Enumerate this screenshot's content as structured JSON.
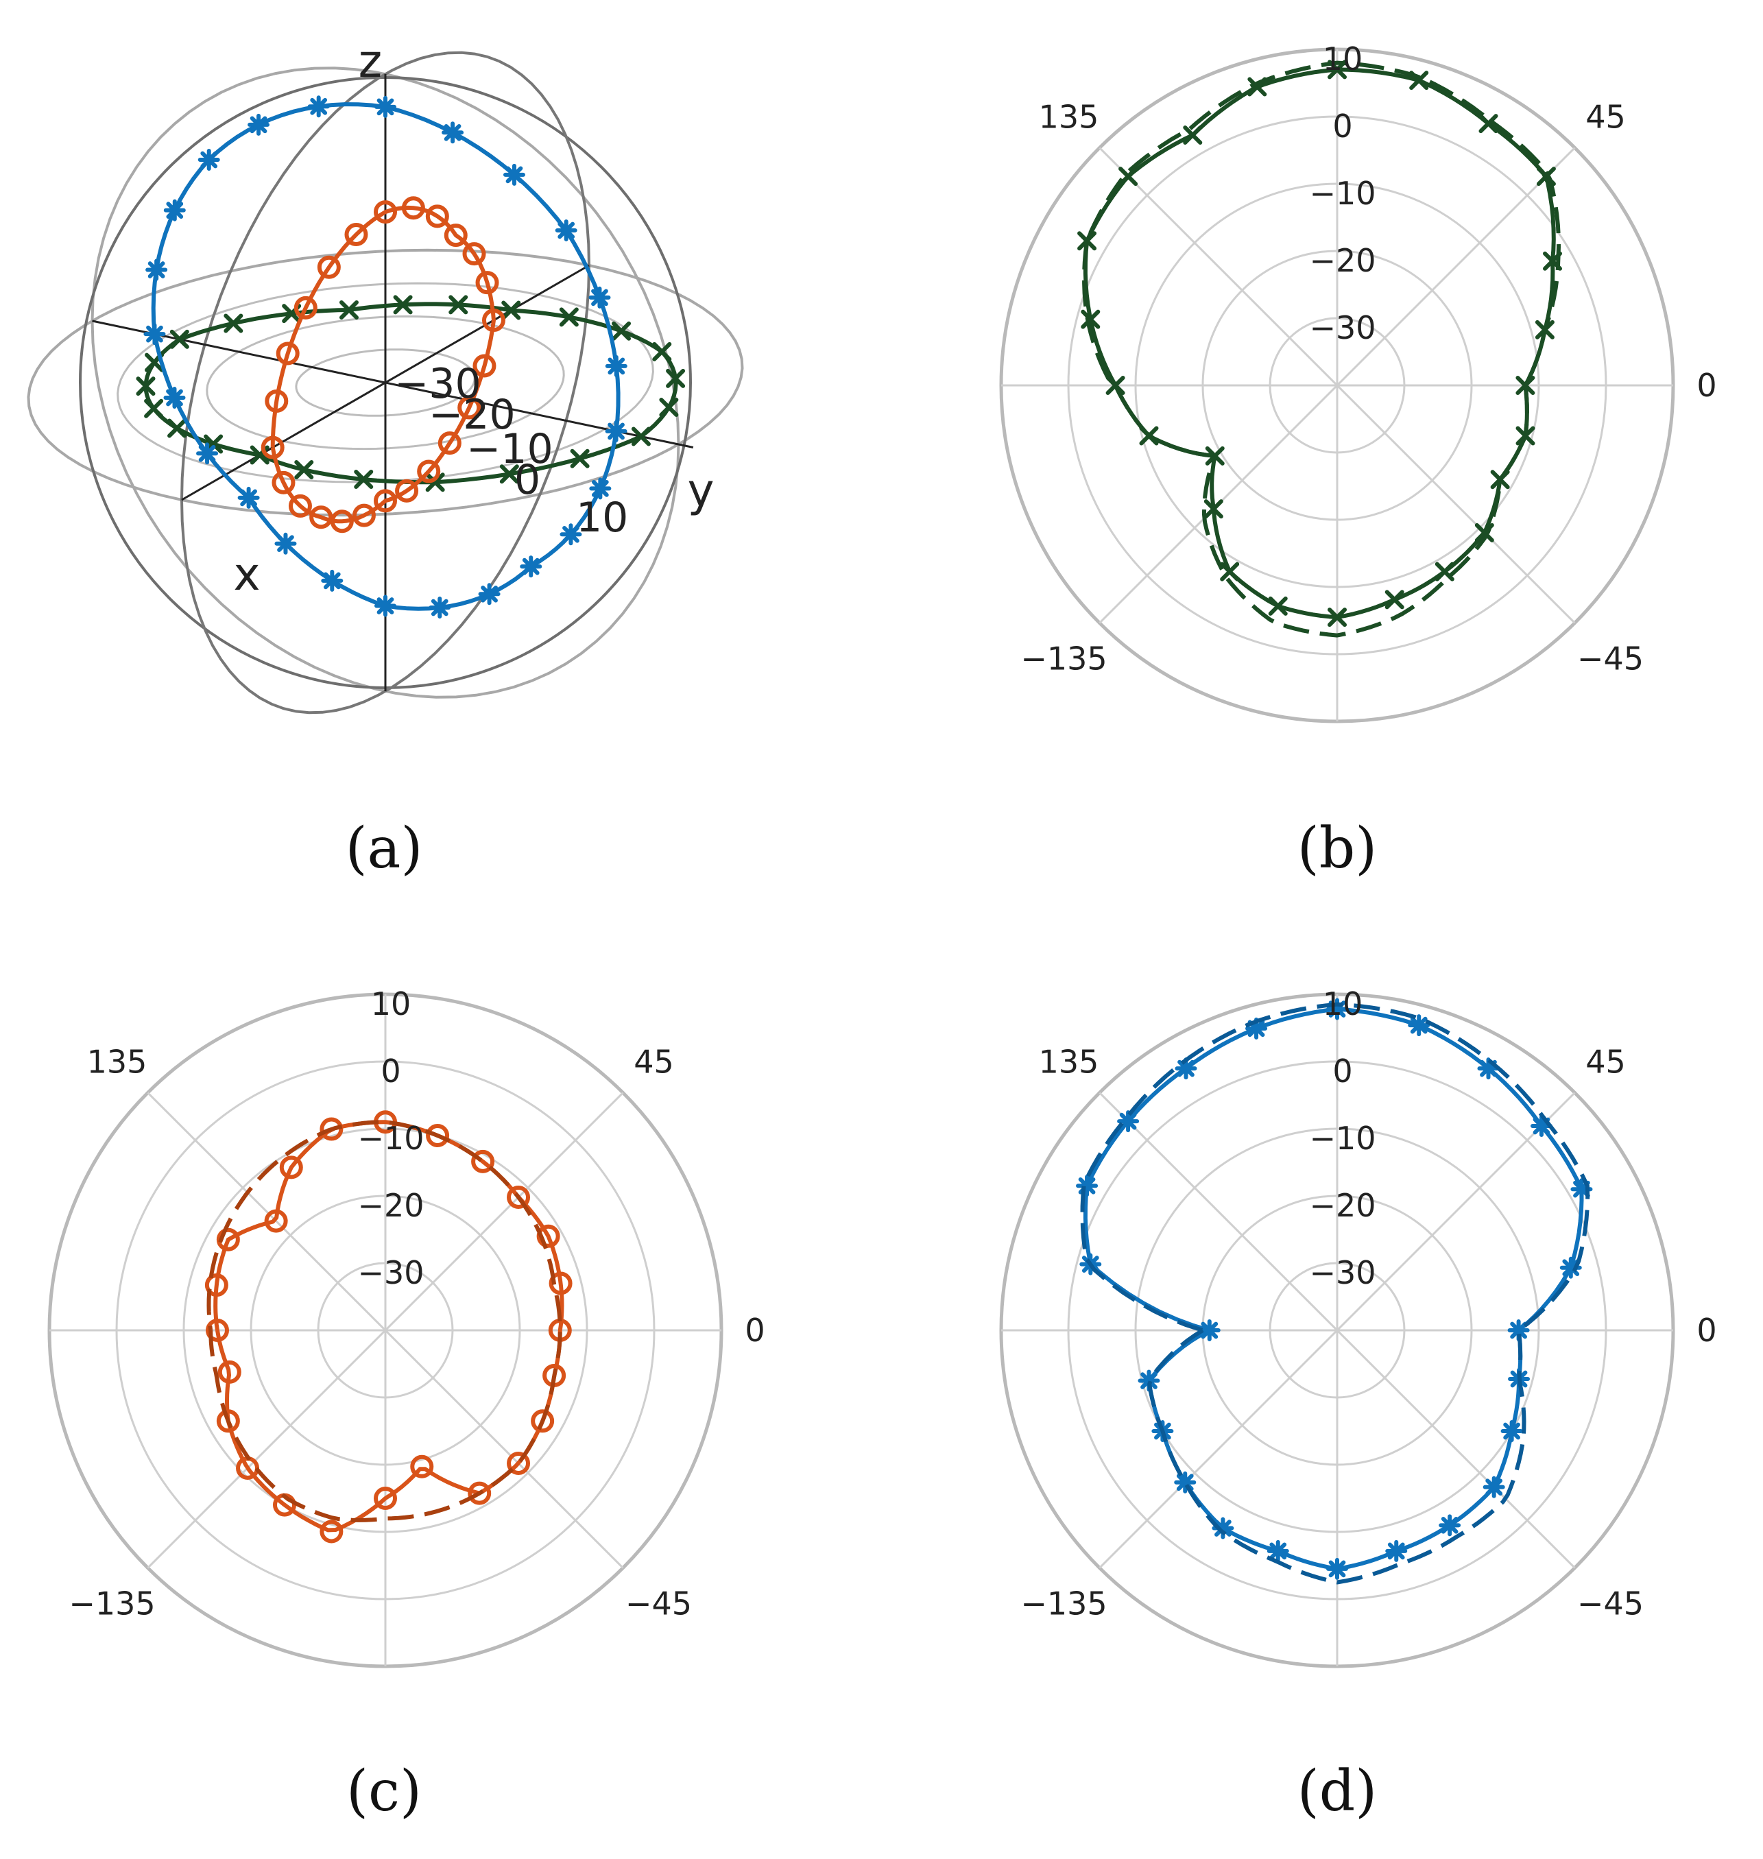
{
  "captions": [
    "(a)",
    "(b)",
    "(c)",
    "(d)"
  ],
  "colors": {
    "green": "#1b4d24",
    "orange": "#d95319",
    "orange_dashed": "#a9400f",
    "blue": "#0f73bd",
    "blue_dashed": "#0a5a96",
    "grid": "#cfcfcf",
    "outer_ring": "#b9b9b9"
  },
  "chart_data": [
    {
      "panel": "a",
      "type": "line",
      "projection": "3d-spherical",
      "axis_labels": [
        "x",
        "y",
        "z"
      ],
      "radial_ticks": [
        "−30",
        "−20",
        "−10",
        "0",
        "10"
      ],
      "rlim": [
        -35,
        12
      ],
      "series": [
        {
          "plane": "xy",
          "color": "green",
          "marker": "x",
          "angles_deg": [
            0,
            45,
            90,
            135,
            180,
            225,
            270,
            315
          ],
          "values_db": [
            -6,
            2,
            6,
            2,
            -6,
            -8,
            -2,
            -4
          ]
        },
        {
          "plane": "xz",
          "color": "orange",
          "marker": "o",
          "angles_deg": [
            0,
            45,
            90,
            135,
            180,
            225,
            270,
            315
          ],
          "values_db": [
            -9,
            -9,
            -9,
            -12,
            -10,
            -14,
            -17,
            -14
          ]
        },
        {
          "plane": "yz",
          "color": "blue",
          "marker": "*",
          "angles_deg": [
            0,
            45,
            90,
            135,
            180,
            225,
            270,
            315
          ],
          "values_db": [
            2,
            6,
            7,
            5,
            2,
            -4,
            -1,
            -2
          ]
        }
      ]
    },
    {
      "panel": "b",
      "type": "line",
      "projection": "polar",
      "radial_ticks": [
        "10",
        "0",
        "−10",
        "−20",
        "−30"
      ],
      "angular_ticks": [
        "0",
        "45",
        "135",
        "−135",
        "−45"
      ],
      "rlim": [
        -40,
        10
      ],
      "angles_deg": [
        -180,
        -165,
        -150,
        -135,
        -120,
        -105,
        -90,
        -75,
        -60,
        -45,
        -30,
        -15,
        0,
        15,
        30,
        45,
        60,
        75,
        90,
        105,
        120,
        135,
        150,
        165,
        180
      ],
      "series": [
        {
          "style": "solid",
          "marker": "x",
          "color": "green",
          "values_db": [
            -7,
            -11,
            -19,
            -14,
            -8,
            -6,
            -5.5,
            -7,
            -8,
            -9,
            -12,
            -11,
            -12,
            -8,
            -3,
            4,
            5,
            7,
            7,
            6,
            3,
            4,
            3,
            -2,
            -7
          ]
        },
        {
          "style": "dashed",
          "color": "green",
          "values_db": [
            -7,
            -11,
            -19,
            -12,
            -7,
            -3.5,
            -2.8,
            -4.5,
            -7,
            -8.5,
            -12,
            -11,
            -12,
            -8,
            -2,
            4.5,
            5.5,
            7.5,
            8,
            6.5,
            4,
            4.5,
            3,
            -1.5,
            -6.5
          ]
        }
      ]
    },
    {
      "panel": "c",
      "type": "line",
      "projection": "polar",
      "radial_ticks": [
        "10",
        "0",
        "−10",
        "−20",
        "−30"
      ],
      "angular_ticks": [
        "0",
        "45",
        "135",
        "−135",
        "−45"
      ],
      "rlim": [
        -40,
        10
      ],
      "angles_deg": [
        -180,
        -165,
        -150,
        -135,
        -120,
        -105,
        -90,
        -75,
        -60,
        -45,
        -30,
        -15,
        0,
        15,
        30,
        45,
        60,
        75,
        90,
        105,
        120,
        135,
        150,
        165,
        180
      ],
      "series": [
        {
          "style": "solid",
          "marker": "o",
          "color": "orange",
          "values_db": [
            -15,
            -16,
            -13,
            -11,
            -10,
            -9,
            -15,
            -19,
            -12,
            -12,
            -13,
            -14,
            -14,
            -13,
            -12,
            -12,
            -11,
            -10,
            -9,
            -9,
            -12,
            -17,
            -13,
            -14,
            -15
          ]
        },
        {
          "style": "dashed",
          "color": "orange_dashed",
          "values_db": [
            -14,
            -14,
            -13,
            -12,
            -11,
            -11,
            -12,
            -12,
            -12,
            -12,
            -13,
            -14,
            -14,
            -14,
            -13,
            -12,
            -11,
            -10,
            -9,
            -9,
            -10,
            -11,
            -12,
            -13,
            -14
          ]
        }
      ]
    },
    {
      "panel": "d",
      "type": "line",
      "projection": "polar",
      "radial_ticks": [
        "10",
        "0",
        "−10",
        "−20",
        "−30"
      ],
      "angular_ticks": [
        "0",
        "45",
        "135",
        "−135",
        "−45"
      ],
      "rlim": [
        -40,
        10
      ],
      "angles_deg": [
        -180,
        -165,
        -150,
        -135,
        -120,
        -105,
        -90,
        -75,
        -60,
        -45,
        -30,
        -15,
        0,
        15,
        30,
        45,
        60,
        75,
        90,
        105,
        120,
        135,
        150,
        165,
        180
      ],
      "series": [
        {
          "style": "solid",
          "marker": "*",
          "color": "blue",
          "values_db": [
            -21,
            -11,
            -10,
            -8,
            -6,
            -6,
            -4.5,
            -6,
            -6.5,
            -7,
            -10,
            -12,
            -13,
            -4,
            2,
            3,
            5,
            7,
            7.8,
            6.5,
            5,
            4,
            3,
            -2,
            -21
          ]
        },
        {
          "style": "dashed",
          "color": "blue_dashed",
          "values_db": [
            -20,
            -11,
            -10,
            -8,
            -5.5,
            -4.5,
            -2.5,
            -4,
            -4.5,
            -4.5,
            -8,
            -12,
            -13,
            -3,
            3,
            4,
            6,
            8,
            8.5,
            7.5,
            6,
            4.5,
            3.5,
            -1.5,
            -20
          ]
        }
      ]
    }
  ]
}
